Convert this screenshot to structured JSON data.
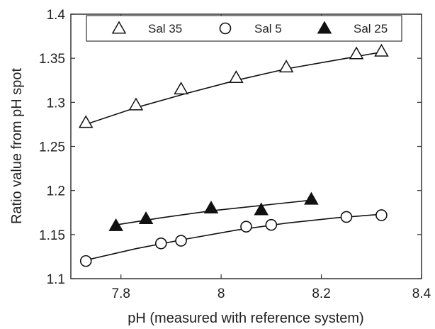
{
  "chart_data": {
    "type": "scatter",
    "title": "",
    "xlabel": "pH (measured with reference system)",
    "ylabel": "Ratio value from pH spot",
    "xlim": [
      7.7,
      8.4
    ],
    "ylim": [
      1.1,
      1.4
    ],
    "xticks": [
      "7.8",
      "8",
      "8.2",
      "8.4"
    ],
    "yticks": [
      "1.1",
      "1.15",
      "1.2",
      "1.25",
      "1.3",
      "1.35",
      "1.4"
    ],
    "grid": false,
    "legend_position": "top",
    "series": [
      {
        "name": "Sal 35",
        "marker": "open-triangle",
        "points": [
          [
            7.73,
            1.277
          ],
          [
            7.83,
            1.297
          ],
          [
            7.92,
            1.315
          ],
          [
            8.03,
            1.328
          ],
          [
            8.13,
            1.34
          ],
          [
            8.27,
            1.355
          ],
          [
            8.32,
            1.358
          ]
        ],
        "fit": [
          [
            7.73,
            1.275
          ],
          [
            7.83,
            1.294
          ],
          [
            7.93,
            1.31
          ],
          [
            8.03,
            1.325
          ],
          [
            8.13,
            1.338
          ],
          [
            8.23,
            1.348
          ],
          [
            8.32,
            1.357
          ]
        ]
      },
      {
        "name": "Sal 5",
        "marker": "open-circle",
        "points": [
          [
            7.73,
            1.12
          ],
          [
            7.88,
            1.14
          ],
          [
            7.92,
            1.143
          ],
          [
            8.05,
            1.159
          ],
          [
            8.1,
            1.161
          ],
          [
            8.25,
            1.17
          ],
          [
            8.32,
            1.172
          ]
        ],
        "fit": [
          [
            7.73,
            1.121
          ],
          [
            7.83,
            1.134
          ],
          [
            7.93,
            1.145
          ],
          [
            8.03,
            1.155
          ],
          [
            8.13,
            1.163
          ],
          [
            8.23,
            1.169
          ],
          [
            8.32,
            1.173
          ]
        ]
      },
      {
        "name": "Sal 25",
        "marker": "filled-triangle",
        "points": [
          [
            7.79,
            1.16
          ],
          [
            7.85,
            1.168
          ],
          [
            7.98,
            1.18
          ],
          [
            8.08,
            1.178
          ],
          [
            8.18,
            1.19
          ]
        ],
        "fit": [
          [
            7.79,
            1.161
          ],
          [
            7.88,
            1.169
          ],
          [
            7.98,
            1.177
          ],
          [
            8.08,
            1.183
          ],
          [
            8.18,
            1.189
          ]
        ]
      }
    ]
  }
}
